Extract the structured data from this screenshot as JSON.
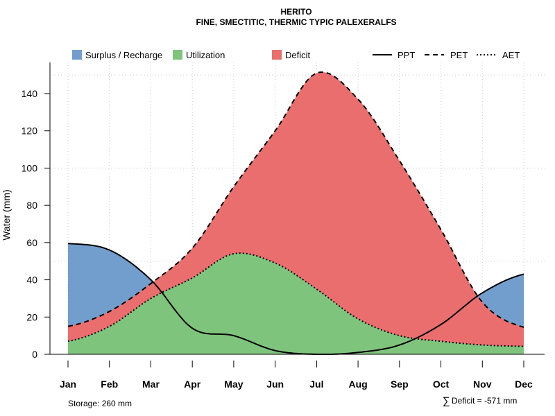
{
  "chart_data": {
    "type": "area",
    "title": "HERITO",
    "subtitle": "FINE, SMECTITIC, THERMIC TYPIC PALEXERALFS",
    "ylabel": "Water (mm)",
    "xlabel": "",
    "ylim": [
      0,
      150
    ],
    "yticks": [
      0,
      20,
      40,
      60,
      80,
      100,
      120,
      140
    ],
    "categories": [
      "Jan",
      "Feb",
      "Mar",
      "Apr",
      "May",
      "Jun",
      "Jul",
      "Aug",
      "Sep",
      "Oct",
      "Nov",
      "Dec"
    ],
    "series": [
      {
        "name": "PPT",
        "values": [
          59.5,
          56,
          40,
          14,
          10,
          2,
          0,
          1,
          5,
          16,
          33,
          43
        ]
      },
      {
        "name": "PET",
        "values": [
          15,
          23,
          38,
          57,
          90,
          120,
          151,
          137,
          104,
          67,
          28,
          14.5
        ]
      },
      {
        "name": "AET",
        "values": [
          7,
          15,
          30,
          41,
          54,
          49,
          35,
          19,
          10,
          7,
          5,
          4.3
        ]
      }
    ],
    "legend": {
      "position": "top",
      "items": [
        "Surplus / Recharge",
        "Utilization",
        "Deficit",
        "PPT",
        "PET",
        "AET"
      ]
    },
    "colors": {
      "surplus": "#729ECE",
      "utilization": "#7FC47C",
      "deficit": "#EB6E6E"
    },
    "annotations": {
      "storage": "Storage: 260 mm",
      "deficit_total": "Deficit = -571 mm",
      "sigma": "∑"
    }
  }
}
